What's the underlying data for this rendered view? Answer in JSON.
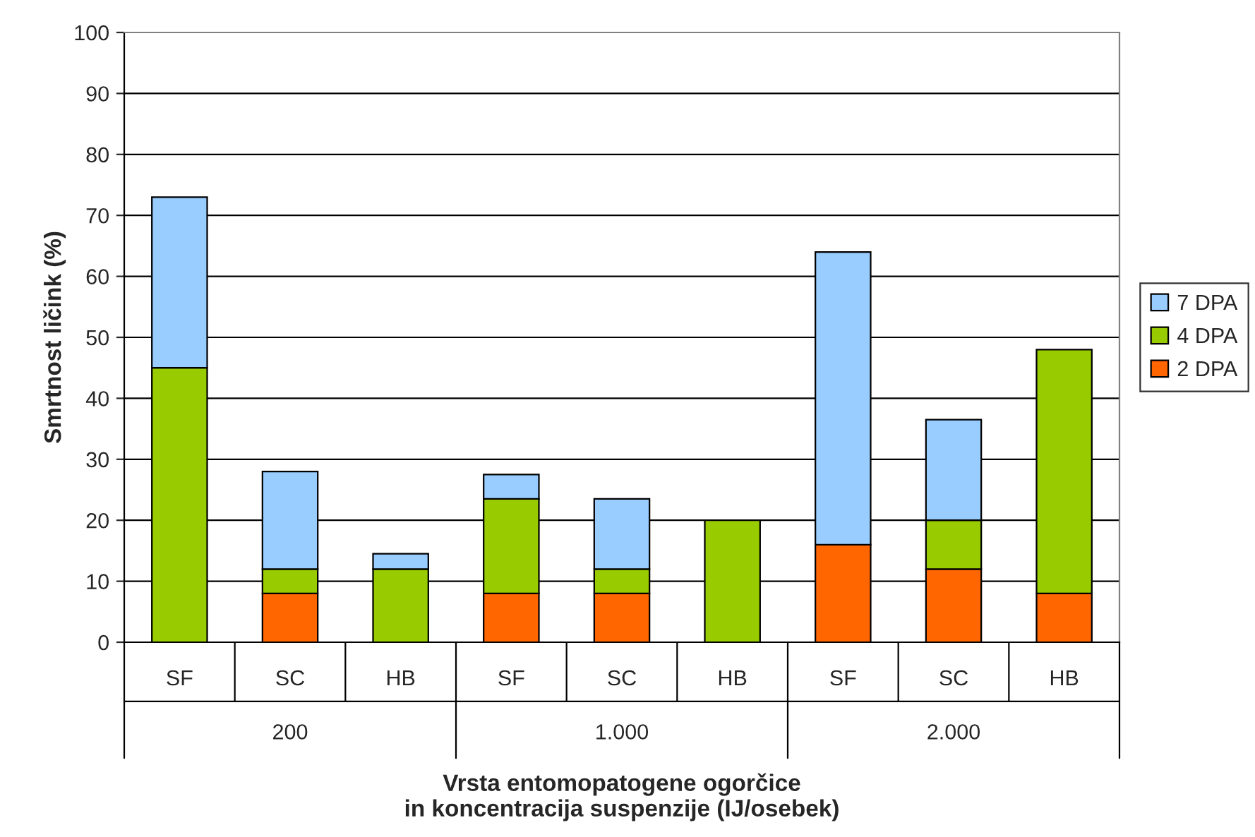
{
  "chart_data": {
    "type": "bar",
    "stacked": true,
    "categories": [
      "SF",
      "SC",
      "HB",
      "SF",
      "SC",
      "HB",
      "SF",
      "SC",
      "HB"
    ],
    "series": [
      {
        "name": "2 DPA",
        "color": "#ff6600",
        "values": [
          null,
          8,
          null,
          8,
          8,
          null,
          16,
          12,
          8
        ]
      },
      {
        "name": "4 DPA",
        "color": "#99cc00",
        "values": [
          45,
          4,
          12,
          15.5,
          4,
          20,
          null,
          8,
          40
        ]
      },
      {
        "name": "7 DPA",
        "color": "#99ccff",
        "values": [
          28,
          16,
          2.5,
          4,
          11.5,
          null,
          48,
          16.5,
          null
        ]
      }
    ],
    "annotations": [
      "200",
      "1.000",
      "2.000"
    ],
    "ylabel": "Smrtnost ličink (%)",
    "xlabel": "Vrsta entomopatogene ogorčice\nin koncentracija suspenzije (IJ/osebek)",
    "ylim": [
      0,
      100
    ],
    "yticks": [
      0,
      10,
      20,
      30,
      40,
      50,
      60,
      70,
      80,
      90,
      100
    ],
    "grid": "y",
    "legend": "right"
  }
}
